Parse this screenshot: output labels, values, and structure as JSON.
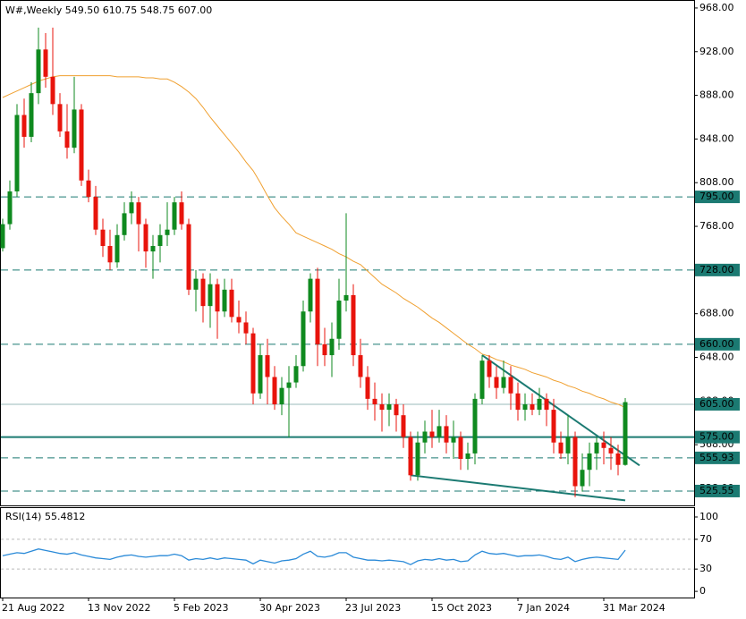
{
  "chart_data": {
    "type": "candlestick",
    "info": "W#,Weekly  549.50 610.75 548.75 607.00",
    "categories": [
      "21 Aug 2022",
      null,
      null,
      null,
      null,
      null,
      null,
      null,
      null,
      null,
      null,
      null,
      "13 Nov 2022",
      null,
      null,
      null,
      null,
      null,
      null,
      null,
      null,
      null,
      null,
      null,
      "5 Feb 2023",
      null,
      null,
      null,
      null,
      null,
      null,
      null,
      null,
      null,
      null,
      null,
      "30 Apr 2023",
      null,
      null,
      null,
      null,
      null,
      null,
      null,
      null,
      null,
      null,
      null,
      "23 Jul 2023",
      null,
      null,
      null,
      null,
      null,
      null,
      null,
      null,
      null,
      null,
      null,
      "15 Oct 2023",
      null,
      null,
      null,
      null,
      null,
      null,
      null,
      null,
      null,
      null,
      null,
      "7 Jan 2024",
      null,
      null,
      null,
      null,
      null,
      null,
      null,
      null,
      null,
      null,
      null,
      "31 Mar 2024",
      null,
      null,
      null
    ],
    "open": [
      748,
      770,
      800,
      870,
      850,
      890,
      930,
      905,
      880,
      855,
      840,
      875,
      810,
      795,
      765,
      750,
      735,
      760,
      780,
      790,
      770,
      745,
      750,
      760,
      765,
      790,
      770,
      710,
      720,
      695,
      715,
      690,
      710,
      685,
      680,
      670,
      615,
      650,
      630,
      605,
      620,
      625,
      640,
      690,
      720,
      660,
      650,
      665,
      700,
      705,
      650,
      630,
      610,
      605,
      600,
      605,
      595,
      575,
      540,
      570,
      580,
      575,
      585,
      570,
      575,
      555,
      560,
      610,
      645,
      630,
      620,
      630,
      615,
      600,
      605,
      600,
      610,
      600,
      570,
      560,
      575,
      530,
      545,
      560,
      570,
      565,
      560,
      549.5
    ],
    "high": [
      775,
      810,
      880,
      885,
      900,
      950,
      945,
      950,
      890,
      880,
      905,
      880,
      820,
      805,
      775,
      765,
      770,
      790,
      800,
      795,
      775,
      760,
      770,
      790,
      795,
      800,
      775,
      728,
      725,
      725,
      720,
      720,
      720,
      700,
      690,
      675,
      660,
      665,
      640,
      630,
      640,
      650,
      700,
      725,
      730,
      675,
      680,
      720,
      780,
      715,
      665,
      640,
      625,
      615,
      615,
      610,
      605,
      580,
      580,
      590,
      600,
      600,
      595,
      590,
      580,
      570,
      615,
      650,
      650,
      640,
      645,
      640,
      625,
      615,
      615,
      620,
      615,
      610,
      580,
      595,
      580,
      560,
      570,
      575,
      580,
      575,
      568,
      610.75
    ],
    "low": [
      745,
      765,
      795,
      840,
      845,
      880,
      895,
      870,
      850,
      830,
      835,
      805,
      790,
      760,
      740,
      728,
      730,
      755,
      770,
      745,
      730,
      720,
      735,
      750,
      760,
      765,
      705,
      690,
      680,
      675,
      665,
      685,
      680,
      670,
      660,
      605,
      610,
      605,
      600,
      595,
      575,
      620,
      635,
      680,
      640,
      640,
      630,
      655,
      690,
      640,
      620,
      600,
      590,
      580,
      585,
      580,
      565,
      535,
      535,
      560,
      565,
      570,
      560,
      555,
      545,
      545,
      550,
      605,
      620,
      610,
      615,
      600,
      590,
      590,
      595,
      595,
      585,
      560,
      555,
      550,
      520,
      525,
      530,
      545,
      550,
      545,
      540,
      548.75
    ],
    "close": [
      770,
      800,
      870,
      850,
      890,
      930,
      905,
      880,
      855,
      840,
      875,
      810,
      795,
      765,
      750,
      735,
      760,
      780,
      790,
      770,
      745,
      750,
      760,
      765,
      790,
      770,
      710,
      720,
      695,
      715,
      690,
      710,
      685,
      680,
      670,
      615,
      650,
      630,
      605,
      620,
      625,
      640,
      690,
      720,
      660,
      650,
      665,
      700,
      705,
      650,
      630,
      610,
      605,
      600,
      605,
      595,
      575,
      540,
      570,
      580,
      575,
      585,
      570,
      575,
      555,
      560,
      610,
      645,
      630,
      620,
      630,
      615,
      600,
      605,
      600,
      610,
      600,
      570,
      560,
      575,
      530,
      545,
      560,
      570,
      565,
      560,
      549.5,
      607
    ],
    "up_color": "#0f8a1f",
    "down_color": "#e8140c",
    "ylim": [
      512.4,
      974.5
    ],
    "yticks": [
      {
        "value": 968,
        "label": "968.00"
      },
      {
        "value": 928,
        "label": "928.00"
      },
      {
        "value": 888,
        "label": "888.00"
      },
      {
        "value": 848,
        "label": "848.00"
      },
      {
        "value": 808,
        "label": "808.00"
      },
      {
        "value": 768,
        "label": "768.00"
      },
      {
        "value": 728,
        "label": "728.00"
      },
      {
        "value": 688,
        "label": "688.00"
      },
      {
        "value": 648,
        "label": "648.00"
      },
      {
        "value": 608,
        "label": "608.00"
      },
      {
        "value": 568,
        "label": "568.00"
      },
      {
        "value": 528,
        "label": "528.00"
      }
    ],
    "levels": [
      {
        "value": 795,
        "label": "795.00",
        "style": "dashed"
      },
      {
        "value": 728,
        "label": "728.00",
        "style": "dashed"
      },
      {
        "value": 660,
        "label": "660.00",
        "style": "dashed"
      },
      {
        "value": 605,
        "label": "605.00",
        "style": "thin"
      },
      {
        "value": 575,
        "label": "575.00",
        "style": "solid"
      },
      {
        "value": 555.93,
        "label": "555.93",
        "style": "dashed"
      },
      {
        "value": 525.55,
        "label": "525.55",
        "style": "dashed"
      }
    ],
    "level_color": "#1b7a72",
    "ma": {
      "color": "#f0a030",
      "values": [
        886,
        889,
        892,
        895,
        898,
        901,
        903,
        905,
        906,
        906,
        906,
        906,
        906,
        906,
        906,
        906,
        905,
        905,
        905,
        905,
        904,
        904,
        903,
        903,
        900,
        896,
        891,
        885,
        877,
        868,
        860,
        852,
        844,
        836,
        827,
        819,
        808,
        796,
        785,
        777,
        770,
        762,
        759,
        756,
        753,
        750,
        747,
        743,
        740,
        736,
        733,
        727,
        721,
        715,
        711,
        707,
        702,
        698,
        694,
        689,
        684,
        680,
        675,
        670,
        665,
        660,
        656,
        651,
        649,
        646,
        644,
        641,
        639,
        637,
        634,
        632,
        630,
        627,
        625,
        622,
        620,
        617,
        615,
        612,
        610,
        607,
        605,
        602
      ]
    },
    "trendlines": [
      {
        "color": "#1b7a72",
        "x": [
          67,
          89
        ],
        "y": [
          650,
          549
        ]
      },
      {
        "color": "#1b7a72",
        "x": [
          57,
          87
        ],
        "y": [
          540,
          517
        ]
      }
    ],
    "rsi": {
      "label": "RSI(14) 55.4812",
      "color": "#2a8ad8",
      "ylim": [
        -8.3,
        112
      ],
      "yticks": [
        100,
        70,
        30,
        0
      ],
      "levels": [
        70,
        30
      ],
      "values": [
        48,
        50,
        52,
        51,
        54,
        57,
        55,
        53,
        51,
        50,
        52,
        49,
        47,
        45,
        44,
        43,
        46,
        48,
        49,
        47,
        46,
        47,
        48,
        48,
        50,
        48,
        42,
        44,
        43,
        45,
        43,
        45,
        44,
        43,
        42,
        37,
        42,
        40,
        38,
        41,
        42,
        44,
        50,
        54,
        47,
        46,
        48,
        52,
        52,
        46,
        44,
        42,
        42,
        41,
        42,
        41,
        40,
        36,
        41,
        43,
        42,
        44,
        42,
        43,
        40,
        41,
        49,
        54,
        51,
        50,
        51,
        49,
        47,
        48,
        48,
        49,
        47,
        44,
        43,
        46,
        40,
        43,
        45,
        46,
        45,
        44,
        43,
        55.4812
      ]
    }
  }
}
